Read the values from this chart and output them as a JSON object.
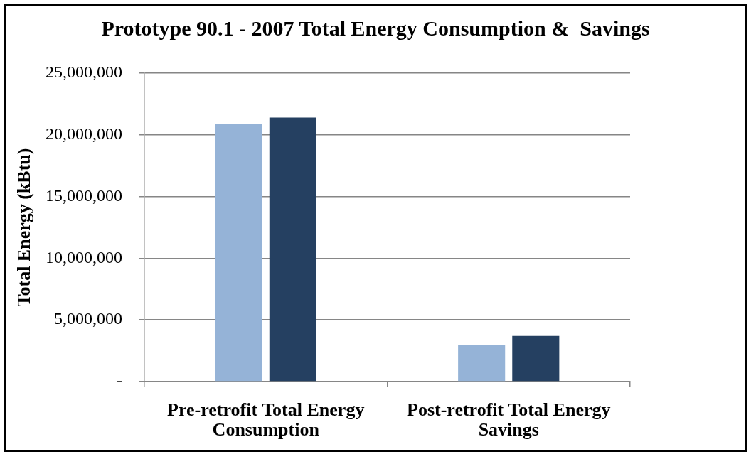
{
  "chart_data": {
    "type": "bar",
    "title": "Prototype 90.1 - 2007 Total Energy Consumption &  Savings",
    "ylabel": "Total Energy (kBtu)",
    "categories": [
      "Pre-retrofit Total Energy Consumption",
      "Post-retrofit Total Energy Savings"
    ],
    "series": [
      {
        "color": "#95b3d7",
        "values": [
          20900000,
          3000000
        ]
      },
      {
        "color": "#254061",
        "values": [
          21400000,
          3700000
        ]
      }
    ],
    "ylim": [
      0,
      25000000
    ],
    "yticks": [
      {
        "value": 0,
        "label": "-"
      },
      {
        "value": 5000000,
        "label": "5,000,000"
      },
      {
        "value": 10000000,
        "label": "10,000,000"
      },
      {
        "value": 15000000,
        "label": "15,000,000"
      },
      {
        "value": 20000000,
        "label": "20,000,000"
      },
      {
        "value": 25000000,
        "label": "25,000,000"
      }
    ],
    "grid": "y"
  }
}
